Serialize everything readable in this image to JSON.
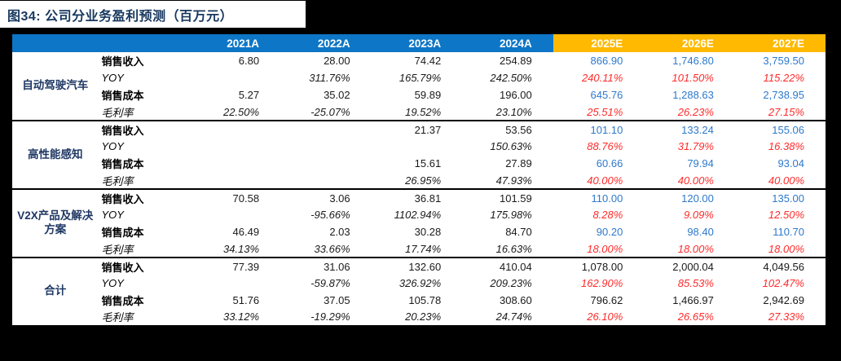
{
  "title": "图34: 公司分业务盈利预测（百万元）",
  "colors": {
    "header_actual_blue": "#0E76C6",
    "header_forecast_orange": "#FFB900",
    "forecast_value_blue": "#2E79CC",
    "forecast_ratio_red": "#FF2B2B",
    "title_navy": "#17375E",
    "background": "#000000"
  },
  "table": {
    "columns": [
      {
        "label": "2021A",
        "type": "actual"
      },
      {
        "label": "2022A",
        "type": "actual"
      },
      {
        "label": "2023A",
        "type": "actual"
      },
      {
        "label": "2024A",
        "type": "actual"
      },
      {
        "label": "2025E",
        "type": "forecast"
      },
      {
        "label": "2026E",
        "type": "forecast"
      },
      {
        "label": "2027E",
        "type": "forecast"
      }
    ],
    "groups": [
      {
        "name": "自动驾驶汽车",
        "is_total": false,
        "rows": [
          {
            "label": "销售收入",
            "kind": "value",
            "values": [
              "6.80",
              "28.00",
              "74.42",
              "254.89",
              "866.90",
              "1,746.80",
              "3,759.50"
            ]
          },
          {
            "label": "YOY",
            "kind": "ratio",
            "values": [
              "",
              "311.76%",
              "165.79%",
              "242.50%",
              "240.11%",
              "101.50%",
              "115.22%"
            ]
          },
          {
            "label": "销售成本",
            "kind": "value",
            "values": [
              "5.27",
              "35.02",
              "59.89",
              "196.00",
              "645.76",
              "1,288.63",
              "2,738.95"
            ]
          },
          {
            "label": "毛利率",
            "kind": "ratio",
            "values": [
              "22.50%",
              "-25.07%",
              "19.52%",
              "23.10%",
              "25.51%",
              "26.23%",
              "27.15%"
            ]
          }
        ]
      },
      {
        "name": "高性能感知",
        "is_total": false,
        "rows": [
          {
            "label": "销售收入",
            "kind": "value",
            "values": [
              "",
              "",
              "21.37",
              "53.56",
              "101.10",
              "133.24",
              "155.06"
            ]
          },
          {
            "label": "YOY",
            "kind": "ratio",
            "values": [
              "",
              "",
              "",
              "150.63%",
              "88.76%",
              "31.79%",
              "16.38%"
            ]
          },
          {
            "label": "销售成本",
            "kind": "value",
            "values": [
              "",
              "",
              "15.61",
              "27.89",
              "60.66",
              "79.94",
              "93.04"
            ]
          },
          {
            "label": "毛利率",
            "kind": "ratio",
            "values": [
              "",
              "",
              "26.95%",
              "47.93%",
              "40.00%",
              "40.00%",
              "40.00%"
            ]
          }
        ]
      },
      {
        "name": "V2X产品及解决方案",
        "is_total": false,
        "rows": [
          {
            "label": "销售收入",
            "kind": "value",
            "values": [
              "70.58",
              "3.06",
              "36.81",
              "101.59",
              "110.00",
              "120.00",
              "135.00"
            ]
          },
          {
            "label": "YOY",
            "kind": "ratio",
            "values": [
              "",
              "-95.66%",
              "1102.94%",
              "175.98%",
              "8.28%",
              "9.09%",
              "12.50%"
            ]
          },
          {
            "label": "销售成本",
            "kind": "value",
            "values": [
              "46.49",
              "2.03",
              "30.28",
              "84.70",
              "90.20",
              "98.40",
              "110.70"
            ]
          },
          {
            "label": "毛利率",
            "kind": "ratio",
            "values": [
              "34.13%",
              "33.66%",
              "17.74%",
              "16.63%",
              "18.00%",
              "18.00%",
              "18.00%"
            ]
          }
        ]
      },
      {
        "name": "合计",
        "is_total": true,
        "rows": [
          {
            "label": "销售收入",
            "kind": "value",
            "values": [
              "77.39",
              "31.06",
              "132.60",
              "410.04",
              "1,078.00",
              "2,000.04",
              "4,049.56"
            ]
          },
          {
            "label": "YOY",
            "kind": "ratio",
            "values": [
              "",
              "-59.87%",
              "326.92%",
              "209.23%",
              "162.90%",
              "85.53%",
              "102.47%"
            ]
          },
          {
            "label": "销售成本",
            "kind": "value",
            "values": [
              "51.76",
              "37.05",
              "105.78",
              "308.60",
              "796.62",
              "1,466.97",
              "2,942.69"
            ]
          },
          {
            "label": "毛利率",
            "kind": "ratio",
            "values": [
              "33.12%",
              "-19.29%",
              "20.23%",
              "24.74%",
              "26.10%",
              "26.65%",
              "27.33%"
            ]
          }
        ]
      }
    ]
  }
}
